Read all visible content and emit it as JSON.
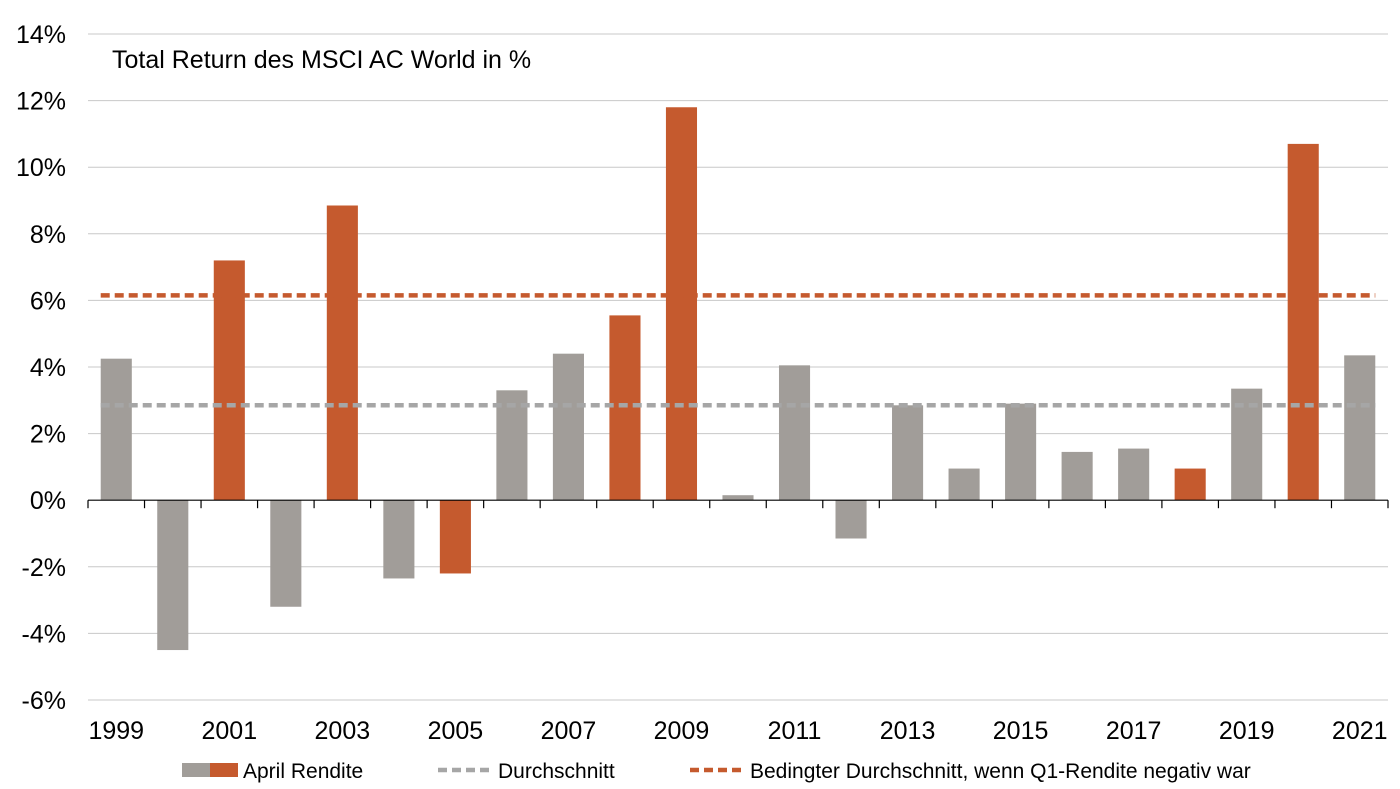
{
  "chart_data": {
    "type": "bar",
    "title": "Total Return des MSCI AC World in %",
    "xlabel": "",
    "ylabel": "",
    "ylim": [
      -6,
      14
    ],
    "yticks": [
      14,
      12,
      10,
      8,
      6,
      4,
      2,
      0,
      -2,
      -4,
      -6
    ],
    "ytick_labels": [
      "14%",
      "12%",
      "10%",
      "8%",
      "6%",
      "4%",
      "2%",
      "0%",
      "-2%",
      "-4%",
      "-6%"
    ],
    "categories": [
      "1999",
      "2000",
      "2001",
      "2002",
      "2003",
      "2004",
      "2005",
      "2006",
      "2007",
      "2008",
      "2009",
      "2010",
      "2011",
      "2012",
      "2013",
      "2014",
      "2015",
      "2016",
      "2017",
      "2018",
      "2019",
      "2020",
      "2021"
    ],
    "xtick_labels": [
      "1999",
      "",
      "2001",
      "",
      "2003",
      "",
      "2005",
      "",
      "2007",
      "",
      "2009",
      "",
      "2011",
      "",
      "2013",
      "",
      "2015",
      "",
      "2017",
      "",
      "2019",
      "",
      "2021"
    ],
    "values": [
      4.25,
      -4.5,
      7.2,
      -3.2,
      8.85,
      -2.35,
      -2.2,
      3.3,
      4.4,
      5.55,
      11.8,
      0.15,
      4.05,
      -1.15,
      2.85,
      0.95,
      2.9,
      1.45,
      1.55,
      0.95,
      3.35,
      10.7,
      4.35
    ],
    "highlight": [
      false,
      false,
      true,
      false,
      true,
      false,
      true,
      false,
      false,
      true,
      true,
      false,
      false,
      false,
      false,
      false,
      false,
      false,
      false,
      true,
      false,
      true,
      false
    ],
    "average": 2.85,
    "conditional_average": 6.15,
    "grid": true,
    "legend_position": "bottom",
    "colors": {
      "bar": "#a19d99",
      "highlight": "#c55a2e",
      "average_line": "#a6a6a6",
      "conditional_line": "#c55a2e",
      "grid": "#c8c8c8",
      "axis": "#000000"
    }
  },
  "legend": {
    "bars_label": "April Rendite",
    "average_label": "Durchschnitt",
    "conditional_label": "Bedingter Durchschnitt, wenn Q1-Rendite negativ war"
  }
}
